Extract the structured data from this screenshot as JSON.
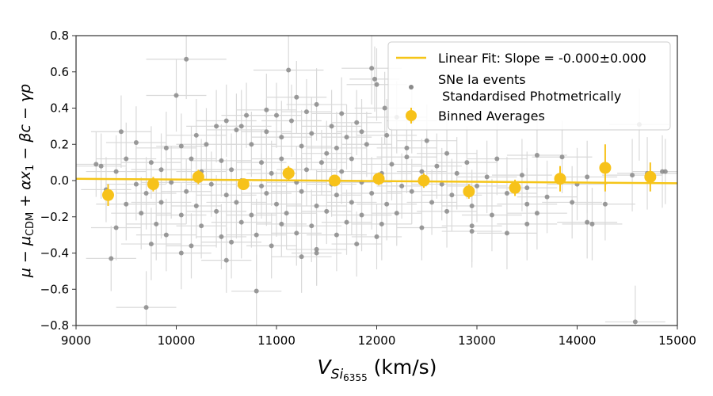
{
  "chart_data": {
    "type": "scatter",
    "xlabel_main": "V",
    "xlabel_sub": "Si",
    "xlabel_subsub": "6355",
    "xlabel_unit": " (km/s)",
    "ylabel": "μ − μ_CDM + αx₁ − βc − γp",
    "ylabel_parts": {
      "p1": "μ − μ",
      "sub": "CDM",
      "p2": " + αx",
      "sub2": "1",
      "p3": " − βc − γp"
    },
    "xlim": [
      9000,
      15000
    ],
    "ylim": [
      -0.8,
      0.8
    ],
    "x_ticks": [
      9000,
      10000,
      11000,
      12000,
      13000,
      14000,
      15000
    ],
    "y_ticks": [
      -0.8,
      -0.6,
      -0.4,
      -0.2,
      0.0,
      0.2,
      0.4,
      0.6,
      0.8
    ],
    "x_tick_labels": [
      "9000",
      "10000",
      "11000",
      "12000",
      "13000",
      "14000",
      "15000"
    ],
    "y_tick_labels": [
      "−0.8",
      "−0.6",
      "−0.4",
      "−0.2",
      "0.0",
      "0.2",
      "0.4",
      "0.6",
      "0.8"
    ],
    "grid": false,
    "legend_position": "top-right",
    "legend": [
      {
        "label": "Linear Fit: Slope = -0.000±0.000",
        "marker": "line"
      },
      {
        "label": "SNe Ia events",
        "label2": " Standardised Photmetrically",
        "marker": "dot"
      },
      {
        "label": "Binned Averages",
        "marker": "big-dot"
      }
    ],
    "colors": {
      "fit": "#f5c518",
      "events": "#8a8a8a",
      "event_errors": "#d9d9d9",
      "binned": "#f7c21a"
    },
    "fit_line": {
      "x": [
        9000,
        15000
      ],
      "y": [
        0.01,
        -0.015
      ]
    },
    "binned": {
      "x": [
        9320,
        9770,
        10220,
        10670,
        11120,
        11580,
        12020,
        12470,
        12920,
        13380,
        13830,
        14280,
        14730
      ],
      "y": [
        -0.08,
        -0.02,
        0.02,
        -0.02,
        0.04,
        0.0,
        0.01,
        0.0,
        -0.06,
        -0.04,
        0.01,
        0.07,
        0.02
      ],
      "yerr": [
        0.06,
        0.04,
        0.04,
        0.03,
        0.04,
        0.03,
        0.035,
        0.04,
        0.04,
        0.045,
        0.07,
        0.13,
        0.08
      ]
    },
    "events": [
      [
        10100,
        0.67,
        400,
        0.22
      ],
      [
        9700,
        -0.7,
        300,
        0.2
      ],
      [
        10800,
        -0.61,
        250,
        0.2
      ],
      [
        14580,
        -0.78,
        300,
        0.2
      ],
      [
        11120,
        0.61,
        350,
        0.22
      ],
      [
        10000,
        0.47,
        300,
        0.2
      ],
      [
        11400,
        0.42,
        300,
        0.2
      ],
      [
        12000,
        0.53,
        300,
        0.2
      ],
      [
        11950,
        0.62,
        300,
        0.2
      ],
      [
        11980,
        0.56,
        250,
        0.18
      ],
      [
        11200,
        0.46,
        300,
        0.2
      ],
      [
        12080,
        0.4,
        300,
        0.2
      ],
      [
        11300,
        0.38,
        250,
        0.18
      ],
      [
        10900,
        0.39,
        300,
        0.2
      ],
      [
        11000,
        0.36,
        250,
        0.18
      ],
      [
        11650,
        0.37,
        300,
        0.2
      ],
      [
        10500,
        0.33,
        300,
        0.2
      ],
      [
        10600,
        0.28,
        300,
        0.2
      ],
      [
        10700,
        0.36,
        250,
        0.18
      ],
      [
        11150,
        0.33,
        300,
        0.2
      ],
      [
        11550,
        0.3,
        300,
        0.2
      ],
      [
        11800,
        0.32,
        250,
        0.18
      ],
      [
        12200,
        0.35,
        300,
        0.2
      ],
      [
        12350,
        0.33,
        250,
        0.18
      ],
      [
        10400,
        0.3,
        300,
        0.2
      ],
      [
        10200,
        0.25,
        300,
        0.2
      ],
      [
        10900,
        0.27,
        250,
        0.18
      ],
      [
        11050,
        0.24,
        300,
        0.2
      ],
      [
        11350,
        0.26,
        300,
        0.2
      ],
      [
        11700,
        0.24,
        250,
        0.18
      ],
      [
        12100,
        0.25,
        300,
        0.2
      ],
      [
        12500,
        0.22,
        300,
        0.2
      ],
      [
        9450,
        0.27,
        300,
        0.2
      ],
      [
        9600,
        0.21,
        300,
        0.2
      ],
      [
        9900,
        0.18,
        300,
        0.2
      ],
      [
        10050,
        0.19,
        250,
        0.18
      ],
      [
        10300,
        0.2,
        300,
        0.2
      ],
      [
        10750,
        0.2,
        250,
        0.18
      ],
      [
        11250,
        0.19,
        300,
        0.2
      ],
      [
        11600,
        0.18,
        300,
        0.2
      ],
      [
        11900,
        0.2,
        250,
        0.18
      ],
      [
        12300,
        0.18,
        300,
        0.2
      ],
      [
        12700,
        0.15,
        300,
        0.2
      ],
      [
        13200,
        0.12,
        300,
        0.2
      ],
      [
        13600,
        0.14,
        300,
        0.2
      ],
      [
        13850,
        0.13,
        300,
        0.2
      ],
      [
        9500,
        0.12,
        300,
        0.2
      ],
      [
        9750,
        0.1,
        300,
        0.2
      ],
      [
        10150,
        0.12,
        250,
        0.18
      ],
      [
        10450,
        0.11,
        300,
        0.2
      ],
      [
        10850,
        0.1,
        250,
        0.18
      ],
      [
        11050,
        0.12,
        300,
        0.2
      ],
      [
        11450,
        0.1,
        250,
        0.18
      ],
      [
        11750,
        0.12,
        300,
        0.2
      ],
      [
        12150,
        0.09,
        300,
        0.2
      ],
      [
        12600,
        0.08,
        250,
        0.18
      ],
      [
        12900,
        0.1,
        300,
        0.2
      ],
      [
        9250,
        0.08,
        250,
        0.18
      ],
      [
        9400,
        0.05,
        300,
        0.2
      ],
      [
        9850,
        0.06,
        300,
        0.2
      ],
      [
        10250,
        0.05,
        250,
        0.18
      ],
      [
        10550,
        0.06,
        300,
        0.2
      ],
      [
        10950,
        0.04,
        250,
        0.18
      ],
      [
        11300,
        0.06,
        300,
        0.2
      ],
      [
        11650,
        0.05,
        250,
        0.18
      ],
      [
        12050,
        0.04,
        300,
        0.2
      ],
      [
        12450,
        0.05,
        250,
        0.18
      ],
      [
        12800,
        0.04,
        300,
        0.2
      ],
      [
        13100,
        0.02,
        300,
        0.2
      ],
      [
        13450,
        0.03,
        300,
        0.2
      ],
      [
        14100,
        0.02,
        300,
        0.2
      ],
      [
        14700,
        0.04,
        300,
        0.2
      ],
      [
        14850,
        0.05,
        300,
        0.2
      ],
      [
        9600,
        -0.02,
        300,
        0.2
      ],
      [
        9950,
        -0.01,
        300,
        0.2
      ],
      [
        10350,
        -0.02,
        250,
        0.18
      ],
      [
        10650,
        0.0,
        300,
        0.2
      ],
      [
        10850,
        -0.03,
        250,
        0.18
      ],
      [
        11200,
        -0.01,
        300,
        0.2
      ],
      [
        11550,
        -0.02,
        250,
        0.18
      ],
      [
        11850,
        -0.01,
        300,
        0.2
      ],
      [
        12250,
        -0.03,
        250,
        0.18
      ],
      [
        12650,
        -0.02,
        300,
        0.2
      ],
      [
        13000,
        -0.03,
        300,
        0.2
      ],
      [
        13500,
        -0.04,
        300,
        0.2
      ],
      [
        14000,
        -0.02,
        300,
        0.2
      ],
      [
        9300,
        -0.05,
        250,
        0.18
      ],
      [
        9700,
        -0.07,
        300,
        0.2
      ],
      [
        10100,
        -0.06,
        250,
        0.18
      ],
      [
        10500,
        -0.08,
        300,
        0.2
      ],
      [
        10900,
        -0.07,
        250,
        0.18
      ],
      [
        11250,
        -0.06,
        300,
        0.2
      ],
      [
        11600,
        -0.08,
        250,
        0.18
      ],
      [
        11950,
        -0.07,
        300,
        0.2
      ],
      [
        12350,
        -0.06,
        250,
        0.18
      ],
      [
        12750,
        -0.08,
        300,
        0.2
      ],
      [
        13300,
        -0.07,
        300,
        0.2
      ],
      [
        13700,
        -0.09,
        300,
        0.2
      ],
      [
        9500,
        -0.13,
        300,
        0.2
      ],
      [
        9850,
        -0.12,
        300,
        0.2
      ],
      [
        10200,
        -0.14,
        250,
        0.18
      ],
      [
        10600,
        -0.12,
        300,
        0.2
      ],
      [
        11000,
        -0.13,
        250,
        0.18
      ],
      [
        11400,
        -0.14,
        300,
        0.2
      ],
      [
        11750,
        -0.12,
        250,
        0.18
      ],
      [
        12100,
        -0.13,
        300,
        0.2
      ],
      [
        12550,
        -0.12,
        250,
        0.18
      ],
      [
        12950,
        -0.14,
        300,
        0.2
      ],
      [
        13500,
        -0.13,
        300,
        0.2
      ],
      [
        13950,
        -0.12,
        300,
        0.2
      ],
      [
        9650,
        -0.18,
        300,
        0.2
      ],
      [
        10050,
        -0.19,
        250,
        0.18
      ],
      [
        10400,
        -0.17,
        300,
        0.2
      ],
      [
        10750,
        -0.19,
        250,
        0.18
      ],
      [
        11100,
        -0.18,
        300,
        0.2
      ],
      [
        11500,
        -0.17,
        250,
        0.18
      ],
      [
        11850,
        -0.19,
        300,
        0.2
      ],
      [
        12200,
        -0.18,
        250,
        0.18
      ],
      [
        12700,
        -0.17,
        300,
        0.2
      ],
      [
        13150,
        -0.19,
        300,
        0.2
      ],
      [
        13600,
        -0.18,
        300,
        0.2
      ],
      [
        9400,
        -0.26,
        250,
        0.18
      ],
      [
        9800,
        -0.24,
        300,
        0.2
      ],
      [
        10250,
        -0.25,
        250,
        0.18
      ],
      [
        10650,
        -0.23,
        300,
        0.2
      ],
      [
        11050,
        -0.24,
        250,
        0.18
      ],
      [
        11350,
        -0.25,
        300,
        0.2
      ],
      [
        11700,
        -0.23,
        250,
        0.18
      ],
      [
        12050,
        -0.24,
        300,
        0.2
      ],
      [
        12450,
        -0.26,
        250,
        0.18
      ],
      [
        12950,
        -0.25,
        300,
        0.2
      ],
      [
        13500,
        -0.24,
        300,
        0.2
      ],
      [
        14150,
        -0.24,
        300,
        0.2
      ],
      [
        9900,
        -0.3,
        300,
        0.2
      ],
      [
        10450,
        -0.31,
        250,
        0.18
      ],
      [
        10800,
        -0.3,
        300,
        0.2
      ],
      [
        11200,
        -0.29,
        250,
        0.18
      ],
      [
        11600,
        -0.3,
        300,
        0.2
      ],
      [
        12000,
        -0.31,
        250,
        0.18
      ],
      [
        12950,
        -0.28,
        300,
        0.2
      ],
      [
        13300,
        -0.29,
        300,
        0.2
      ],
      [
        9750,
        -0.35,
        300,
        0.2
      ],
      [
        10150,
        -0.36,
        250,
        0.18
      ],
      [
        10550,
        -0.34,
        300,
        0.2
      ],
      [
        10950,
        -0.36,
        250,
        0.18
      ],
      [
        11400,
        -0.38,
        300,
        0.2
      ],
      [
        11800,
        -0.35,
        250,
        0.18
      ],
      [
        10050,
        -0.4,
        300,
        0.2
      ],
      [
        10500,
        -0.44,
        250,
        0.18
      ],
      [
        11250,
        -0.42,
        300,
        0.2
      ],
      [
        11400,
        -0.4,
        250,
        0.18
      ],
      [
        9350,
        -0.43,
        250,
        0.18
      ],
      [
        9200,
        0.09,
        250,
        0.18
      ],
      [
        14280,
        -0.13,
        300,
        0.2
      ],
      [
        14100,
        -0.23,
        300,
        0.2
      ],
      [
        14620,
        0.31,
        300,
        0.2
      ],
      [
        14550,
        0.03,
        300,
        0.2
      ],
      [
        14880,
        0.05,
        250,
        0.18
      ],
      [
        10650,
        0.3,
        300,
        0.2
      ],
      [
        11850,
        0.27,
        250,
        0.18
      ],
      [
        12300,
        0.13,
        300,
        0.2
      ],
      [
        11500,
        0.15,
        250,
        0.18
      ]
    ]
  }
}
